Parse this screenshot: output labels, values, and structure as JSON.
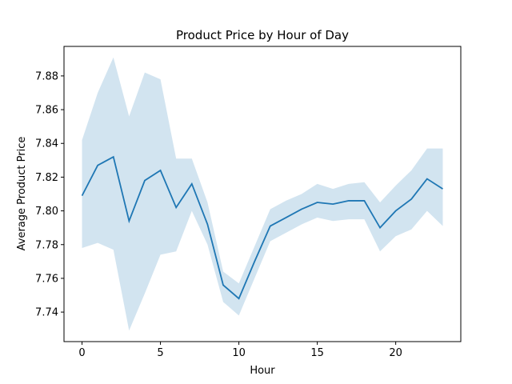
{
  "chart_data": {
    "type": "line",
    "title": "Product Price by Hour of Day",
    "xlabel": "Hour",
    "ylabel": "Average Product Price",
    "xlim": [
      -1.15,
      24.15
    ],
    "ylim": [
      7.7225,
      7.8975
    ],
    "x_ticks": [
      0,
      5,
      10,
      15,
      20
    ],
    "x_tick_labels": [
      "0",
      "5",
      "10",
      "15",
      "20"
    ],
    "y_ticks": [
      7.74,
      7.76,
      7.78,
      7.8,
      7.82,
      7.84,
      7.86,
      7.88
    ],
    "y_tick_labels": [
      "7.74",
      "7.76",
      "7.78",
      "7.80",
      "7.82",
      "7.84",
      "7.86",
      "7.88"
    ],
    "grid": false,
    "colors": {
      "line": "#1f77b4",
      "band": "#1f77b4"
    },
    "series": [
      {
        "x": [
          0,
          1,
          2,
          3,
          4,
          5,
          6,
          7,
          8,
          9,
          10,
          11,
          12,
          13,
          14,
          15,
          16,
          17,
          18,
          19,
          20,
          21,
          22,
          23
        ],
        "values": [
          7.809,
          7.827,
          7.832,
          7.794,
          7.818,
          7.824,
          7.802,
          7.816,
          7.792,
          7.756,
          7.748,
          7.77,
          7.791,
          7.796,
          7.801,
          7.805,
          7.804,
          7.806,
          7.806,
          7.79,
          7.8,
          7.807,
          7.819,
          7.813
        ],
        "ci_lower": [
          7.778,
          7.781,
          7.777,
          7.729,
          7.751,
          7.774,
          7.776,
          7.8,
          7.78,
          7.746,
          7.738,
          7.76,
          7.782,
          7.787,
          7.792,
          7.796,
          7.794,
          7.795,
          7.795,
          7.776,
          7.785,
          7.789,
          7.8,
          7.791
        ],
        "ci_upper": [
          7.842,
          7.87,
          7.891,
          7.856,
          7.882,
          7.878,
          7.831,
          7.831,
          7.805,
          7.764,
          7.757,
          7.779,
          7.801,
          7.806,
          7.81,
          7.816,
          7.813,
          7.816,
          7.817,
          7.805,
          7.815,
          7.824,
          7.837,
          7.837
        ]
      }
    ]
  }
}
